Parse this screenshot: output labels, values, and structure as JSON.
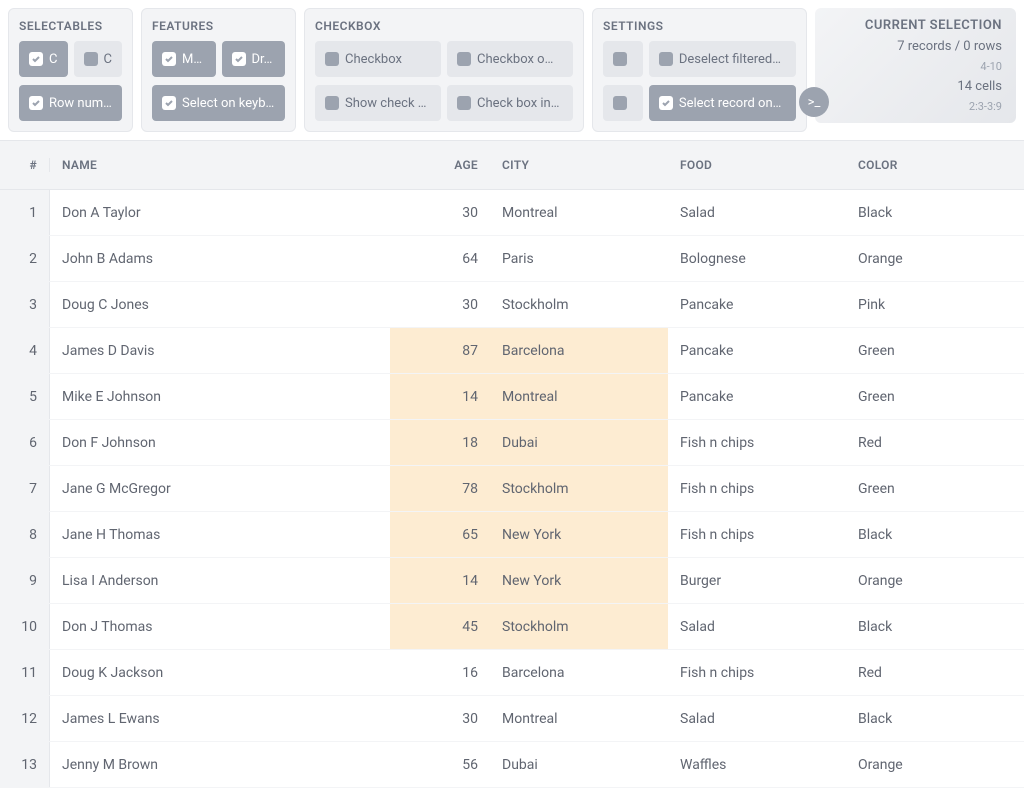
{
  "panels": {
    "selectables": {
      "title": "SELECTABLES",
      "row1": [
        {
          "label": "C",
          "active": true
        },
        {
          "label": "C",
          "active": false
        }
      ],
      "row2": [
        {
          "label": "Row num…",
          "active": true
        }
      ]
    },
    "features": {
      "title": "FEATURES",
      "row1": [
        {
          "label": "M…",
          "active": true
        },
        {
          "label": "Dr…",
          "active": true
        }
      ],
      "row2": [
        {
          "label": "Select on keyb…",
          "active": true
        }
      ]
    },
    "checkbox": {
      "title": "CHECKBOX",
      "row1": [
        {
          "label": "Checkbox",
          "active": false
        },
        {
          "label": "Checkbox o…",
          "active": false
        }
      ],
      "row2": [
        {
          "label": "Show check …",
          "active": false
        },
        {
          "label": "Check box in…",
          "active": false
        }
      ]
    },
    "settings": {
      "title": "SETTINGS",
      "row1": [
        {
          "label": "",
          "active": false,
          "narrow": true
        },
        {
          "label": "Deselect filtered…",
          "active": false
        }
      ],
      "row2": [
        {
          "label": "",
          "active": false,
          "narrow": true
        },
        {
          "label": "Select record on…",
          "active": true
        }
      ]
    }
  },
  "selection": {
    "title": "CURRENT SELECTION",
    "line1": "7 records / 0 rows",
    "small1": "4-10",
    "line2": "14 cells",
    "small2": "2:3-3:9"
  },
  "colors": {
    "highlight": "#fdecd2",
    "panel_bg": "#f3f4f6",
    "chip_bg": "#e5e7eb",
    "chip_active": "#9ca3af",
    "text": "#606570",
    "muted": "#6b7280"
  },
  "table": {
    "columns": [
      "#",
      "NAME",
      "AGE",
      "CITY",
      "FOOD",
      "COLOR"
    ],
    "selected_rows": [
      4,
      5,
      6,
      7,
      8,
      9,
      10
    ],
    "selected_cols": [
      "age",
      "city"
    ],
    "rows": [
      {
        "n": 1,
        "name": "Don A Taylor",
        "age": 30,
        "city": "Montreal",
        "food": "Salad",
        "color": "Black"
      },
      {
        "n": 2,
        "name": "John B Adams",
        "age": 64,
        "city": "Paris",
        "food": "Bolognese",
        "color": "Orange"
      },
      {
        "n": 3,
        "name": "Doug C Jones",
        "age": 30,
        "city": "Stockholm",
        "food": "Pancake",
        "color": "Pink"
      },
      {
        "n": 4,
        "name": "James D Davis",
        "age": 87,
        "city": "Barcelona",
        "food": "Pancake",
        "color": "Green"
      },
      {
        "n": 5,
        "name": "Mike E Johnson",
        "age": 14,
        "city": "Montreal",
        "food": "Pancake",
        "color": "Green"
      },
      {
        "n": 6,
        "name": "Don F Johnson",
        "age": 18,
        "city": "Dubai",
        "food": "Fish n chips",
        "color": "Red"
      },
      {
        "n": 7,
        "name": "Jane G McGregor",
        "age": 78,
        "city": "Stockholm",
        "food": "Fish n chips",
        "color": "Green"
      },
      {
        "n": 8,
        "name": "Jane H Thomas",
        "age": 65,
        "city": "New York",
        "food": "Fish n chips",
        "color": "Black"
      },
      {
        "n": 9,
        "name": "Lisa I Anderson",
        "age": 14,
        "city": "New York",
        "food": "Burger",
        "color": "Orange"
      },
      {
        "n": 10,
        "name": "Don J Thomas",
        "age": 45,
        "city": "Stockholm",
        "food": "Salad",
        "color": "Black"
      },
      {
        "n": 11,
        "name": "Doug K Jackson",
        "age": 16,
        "city": "Barcelona",
        "food": "Fish n chips",
        "color": "Red"
      },
      {
        "n": 12,
        "name": "James L Ewans",
        "age": 30,
        "city": "Montreal",
        "food": "Salad",
        "color": "Black"
      },
      {
        "n": 13,
        "name": "Jenny M Brown",
        "age": 56,
        "city": "Dubai",
        "food": "Waffles",
        "color": "Orange"
      }
    ]
  }
}
